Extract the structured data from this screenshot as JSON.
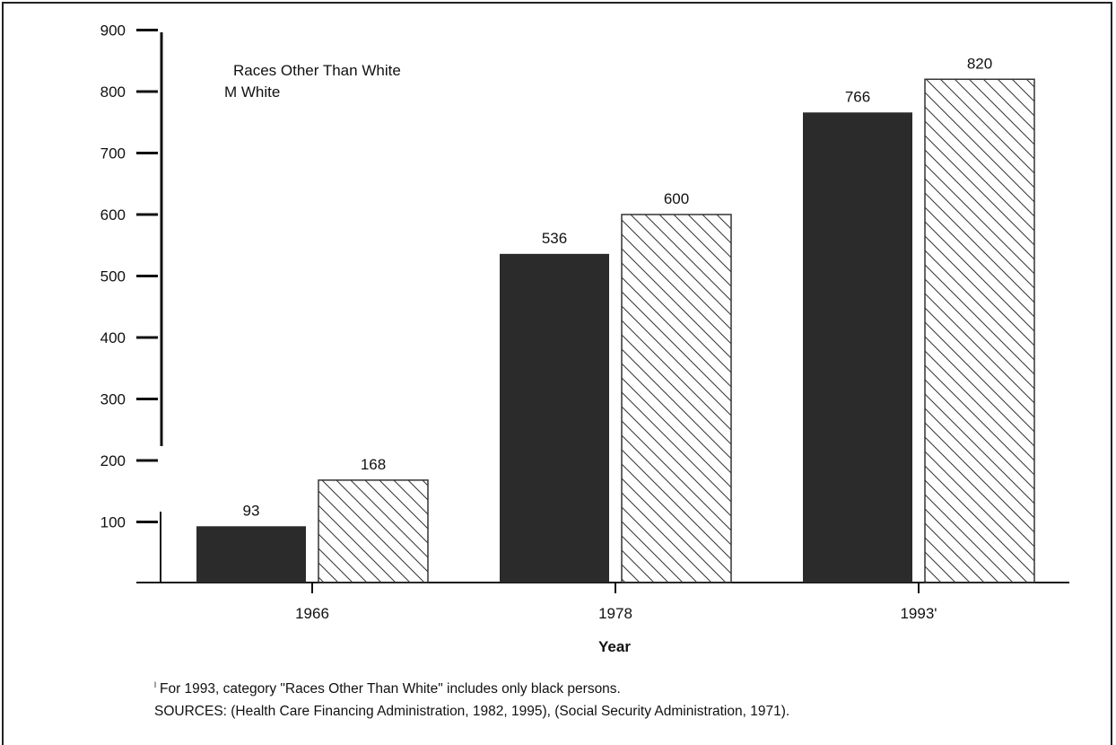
{
  "chart_data": {
    "type": "bar",
    "title": "",
    "xlabel": "Year",
    "ylabel": "",
    "categories": [
      "1966",
      "1978",
      "1993'"
    ],
    "series": [
      {
        "name": "Races Other Than White",
        "values": [
          93,
          536,
          766
        ],
        "fill": "solid",
        "color": "#2b2b2b"
      },
      {
        "name": "M White",
        "values": [
          168,
          600,
          820
        ],
        "fill": "hatched",
        "color": "#ffffff"
      }
    ],
    "ylim": [
      0,
      900
    ],
    "yticks": [
      100,
      200,
      300,
      400,
      500,
      600,
      700,
      800,
      900
    ],
    "grid": false,
    "legend": "top-left"
  },
  "footnotes": {
    "mark": "l",
    "note": "For 1993, category \"Races Other Than White\" includes only black persons.",
    "sources": "SOURCES: (Health Care Financing Administration, 1982, 1995), (Social Security Administration, 1971)."
  }
}
